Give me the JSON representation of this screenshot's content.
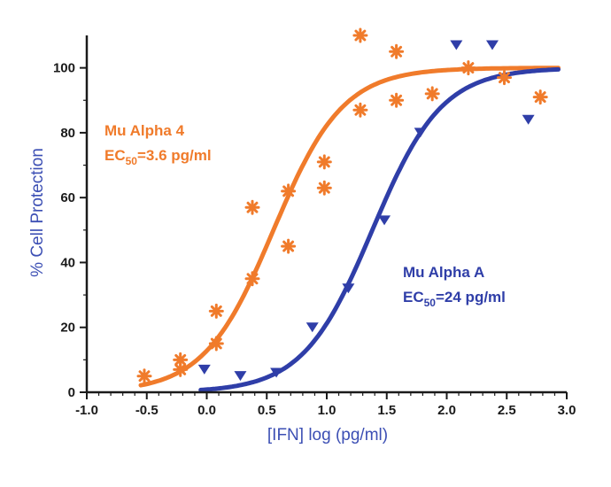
{
  "colors": {
    "alpha4": "#f07b2b",
    "alphaA": "#2f3ea8",
    "axis_title": "#3c4fb4",
    "axis": "#1a1a1a"
  },
  "chart_data": {
    "type": "scatter",
    "title": "",
    "xlabel": "[IFN] log (pg/ml)",
    "ylabel": "% Cell Protection",
    "xlim": [
      -1.0,
      3.0
    ],
    "ylim": [
      0,
      110
    ],
    "x_ticks": [
      "-1.0",
      "-0.5",
      "0.0",
      "0.5",
      "1.0",
      "1.5",
      "2.0",
      "2.5",
      "3.0"
    ],
    "y_ticks": [
      "0",
      "20",
      "40",
      "60",
      "80",
      "100"
    ],
    "grid": false,
    "series": [
      {
        "name": "Mu Alpha 4",
        "marker": "asterisk",
        "color": "#f07b2b",
        "ec50_text": "3.6 pg/ml",
        "fit": {
          "bottom": 0,
          "top": 100,
          "logEC50": 0.556,
          "hill": 1.5
        },
        "points": [
          [
            -0.52,
            5
          ],
          [
            -0.22,
            7
          ],
          [
            -0.22,
            10
          ],
          [
            0.08,
            15
          ],
          [
            0.08,
            25
          ],
          [
            0.38,
            35
          ],
          [
            0.38,
            57
          ],
          [
            0.68,
            45
          ],
          [
            0.68,
            62
          ],
          [
            0.98,
            63
          ],
          [
            0.98,
            71
          ],
          [
            1.28,
            87
          ],
          [
            1.28,
            110
          ],
          [
            1.58,
            90
          ],
          [
            1.58,
            105
          ],
          [
            1.88,
            92
          ],
          [
            2.18,
            100
          ],
          [
            2.48,
            97
          ],
          [
            2.78,
            91
          ]
        ]
      },
      {
        "name": "Mu Alpha A",
        "marker": "triangle-down",
        "color": "#2f3ea8",
        "ec50_text": "24 pg/ml",
        "fit": {
          "bottom": 0,
          "top": 100,
          "logEC50": 1.38,
          "hill": 1.5
        },
        "points": [
          [
            -0.02,
            7
          ],
          [
            0.28,
            5
          ],
          [
            0.58,
            6
          ],
          [
            0.88,
            20
          ],
          [
            1.18,
            32
          ],
          [
            1.48,
            53
          ],
          [
            1.78,
            80
          ],
          [
            2.08,
            107
          ],
          [
            2.38,
            107
          ],
          [
            2.68,
            84
          ]
        ]
      }
    ]
  }
}
